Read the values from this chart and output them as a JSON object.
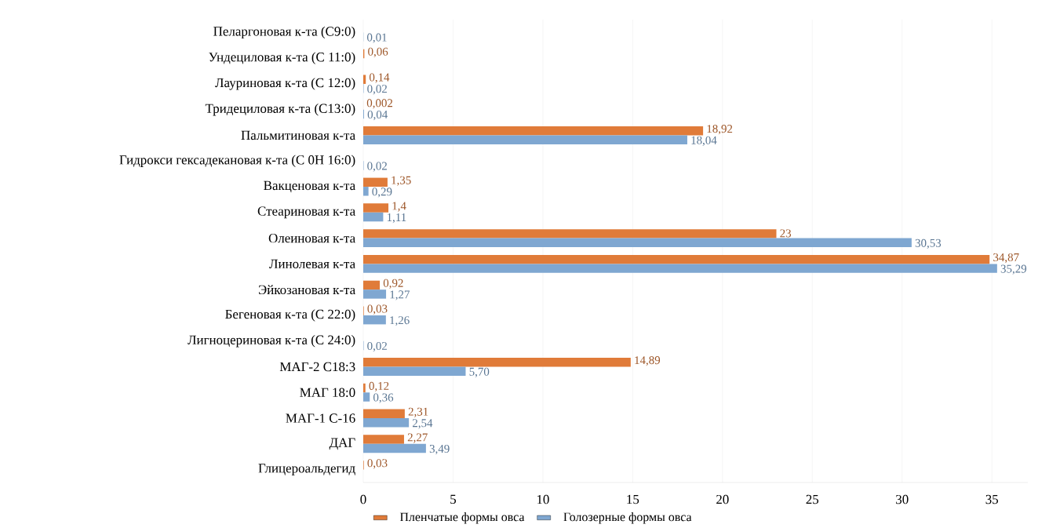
{
  "chart_data": {
    "type": "bar",
    "orientation": "horizontal",
    "categories": [
      "Пеларгоновая к-та (С9:0)",
      "Ундециловая к-та (С 11:0)",
      "Лауриновая к-та (С 12:0)",
      "Тридециловая к-та (С13:0)",
      "Пальмитиновая к-та",
      "Гидрокси гексадекановая к-та (С 0Н 16:0)",
      "Вакценовая к-та",
      "Стеариновая к-та",
      "Олеиновая к-та",
      "Линолевая к-та",
      "Эйкозановая к-та",
      "Бегеновая к-та (С 22:0)",
      "Лигноцериновая к-та (С 24:0)",
      "МАГ-2 С18:3",
      "МАГ 18:0",
      "МАГ-1 С-16",
      "ДАГ",
      "Глицероальдегид"
    ],
    "series": [
      {
        "name": "Пленчатые формы овса",
        "color": "#e07b39",
        "values": [
          null,
          0.06,
          0.14,
          0.002,
          18.92,
          null,
          1.35,
          1.4,
          23,
          34.87,
          0.92,
          0.03,
          null,
          14.89,
          0.12,
          2.31,
          2.27,
          0.03
        ],
        "value_labels": [
          null,
          "0,06",
          "0,14",
          "0,002",
          "18,92",
          null,
          "1,35",
          "1,4",
          "23",
          "34,87",
          "0,92",
          "0,03",
          null,
          "14,89",
          "0,12",
          "2,31",
          "2,27",
          "0,03"
        ]
      },
      {
        "name": "Голозерные формы овса",
        "color": "#7fa7d1",
        "values": [
          0.01,
          null,
          0.02,
          0.04,
          18.04,
          0.02,
          0.29,
          1.11,
          30.53,
          35.29,
          1.27,
          1.26,
          0.02,
          5.7,
          0.36,
          2.54,
          3.49,
          null
        ],
        "value_labels": [
          "0,01",
          null,
          "0,02",
          "0,04",
          "18,04",
          "0,02",
          "0,29",
          "1,11",
          "30,53",
          "35,29",
          "1,27",
          "1,26",
          "0,02",
          "5,70",
          "0,36",
          "2,54",
          "3,49",
          null
        ]
      }
    ],
    "xlim": [
      0,
      37
    ],
    "xticks": [
      0,
      5,
      10,
      15,
      20,
      25,
      30,
      35
    ],
    "grid": "x",
    "legend": "bottom"
  }
}
